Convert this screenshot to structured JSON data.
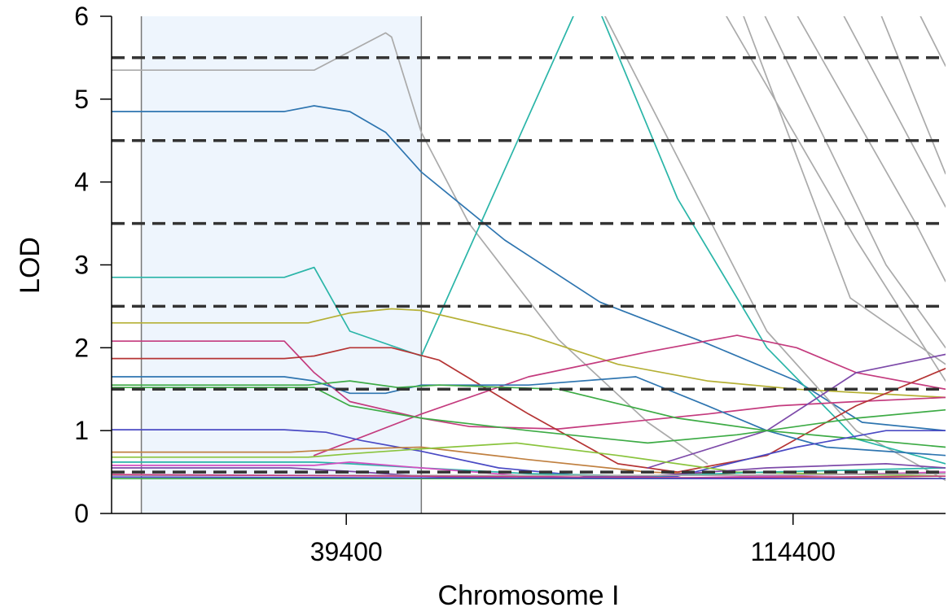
{
  "chart_data": {
    "type": "line",
    "title": "",
    "xlabel": "Chromosome I",
    "ylabel": "LOD",
    "xlim": [
      0,
      140000
    ],
    "ylim": [
      0,
      6
    ],
    "x_ticks": [
      39400,
      114400
    ],
    "y_ticks": [
      0,
      1,
      2,
      3,
      4,
      5,
      6
    ],
    "grid": false,
    "legend": "none",
    "highlight_region": {
      "x": [
        5000,
        52000
      ],
      "color": "#eef5fd",
      "edge_color": "#777777"
    },
    "thresholds": [
      0.5,
      1.5,
      2.5,
      3.5,
      4.5,
      5.5
    ],
    "threshold_color": "#333333",
    "series": [
      {
        "color": "#aaaaaa",
        "x": [
          0,
          34000,
          46000,
          47000,
          52000,
          60000,
          75000,
          90000,
          100000
        ],
        "y": [
          5.35,
          5.35,
          5.8,
          5.75,
          4.6,
          3.5,
          2.1,
          1.1,
          0.6
        ]
      },
      {
        "color": "#2e75b0",
        "x": [
          0,
          29000,
          34000,
          40000,
          46000,
          52000,
          66000,
          82000,
          100000,
          115000,
          126000,
          140000
        ],
        "y": [
          4.85,
          4.85,
          4.92,
          4.85,
          4.6,
          4.12,
          3.3,
          2.55,
          2.05,
          1.6,
          1.1,
          1.0
        ]
      },
      {
        "color": "#aaaaaa",
        "x": [
          80000,
          110000,
          125000,
          140000
        ],
        "y": [
          6.4,
          2.2,
          1.0,
          0.4
        ]
      },
      {
        "color": "#aaaaaa",
        "x": [
          100000,
          125000,
          140000
        ],
        "y": [
          6.4,
          3.3,
          1.6
        ]
      },
      {
        "color": "#aaaaaa",
        "x": [
          107000,
          130000,
          140000
        ],
        "y": [
          6.4,
          3.0,
          2.0
        ]
      },
      {
        "color": "#aaaaaa",
        "x": [
          112000,
          135000,
          140000
        ],
        "y": [
          6.4,
          3.5,
          2.8
        ]
      },
      {
        "color": "#aaaaaa",
        "x": [
          120000,
          140000
        ],
        "y": [
          6.4,
          3.7
        ]
      },
      {
        "color": "#aaaaaa",
        "x": [
          127000,
          140000
        ],
        "y": [
          6.4,
          4.1
        ]
      },
      {
        "color": "#aaaaaa",
        "x": [
          133000,
          140000
        ],
        "y": [
          6.4,
          5.4
        ]
      },
      {
        "color": "#aaaaaa",
        "x": [
          104000,
          124000,
          140000
        ],
        "y": [
          6.4,
          2.6,
          1.8
        ]
      },
      {
        "color": "#2ab5a8",
        "x": [
          0,
          29000,
          34000,
          40000,
          52000,
          80000,
          95000,
          110000,
          125000,
          140000
        ],
        "y": [
          2.85,
          2.85,
          2.97,
          2.2,
          1.9,
          6.4,
          3.8,
          2.0,
          0.9,
          0.6
        ]
      },
      {
        "color": "#b5b035",
        "x": [
          0,
          33000,
          40000,
          47000,
          52000,
          70000,
          85000,
          100000,
          115000,
          140000
        ],
        "y": [
          2.3,
          2.3,
          2.42,
          2.47,
          2.45,
          2.15,
          1.8,
          1.6,
          1.5,
          1.4
        ]
      },
      {
        "color": "#c43b7e",
        "x": [
          0,
          29000,
          34000,
          40000,
          52000,
          60000,
          75000,
          100000,
          112000,
          125000,
          140000
        ],
        "y": [
          2.08,
          2.08,
          1.7,
          1.35,
          1.15,
          1.05,
          1.02,
          1.2,
          1.3,
          1.35,
          1.4
        ]
      },
      {
        "color": "#c43b7e",
        "x": [
          34000,
          52000,
          70000,
          90000,
          105000,
          115000,
          125000,
          140000
        ],
        "y": [
          0.7,
          1.2,
          1.65,
          1.95,
          2.15,
          2.0,
          1.7,
          1.5
        ]
      },
      {
        "color": "#b53434",
        "x": [
          0,
          29000,
          34000,
          40000,
          47000,
          55000,
          70000,
          85000,
          95000,
          110000,
          125000,
          140000
        ],
        "y": [
          1.87,
          1.87,
          1.9,
          2.0,
          2.0,
          1.85,
          1.2,
          0.6,
          0.5,
          0.7,
          1.3,
          1.75
        ]
      },
      {
        "color": "#2e75b0",
        "x": [
          0,
          29000,
          34000,
          40000,
          46000,
          52000,
          70000,
          88000,
          100000,
          110000,
          120000,
          140000
        ],
        "y": [
          1.65,
          1.65,
          1.6,
          1.45,
          1.45,
          1.55,
          1.55,
          1.65,
          1.3,
          1.0,
          0.8,
          0.7
        ]
      },
      {
        "color": "#3dab45",
        "x": [
          0,
          33000,
          40000,
          48000,
          55000,
          75000,
          95000,
          110000,
          125000,
          140000
        ],
        "y": [
          1.55,
          1.55,
          1.6,
          1.52,
          1.55,
          1.5,
          1.15,
          1.0,
          0.9,
          0.8
        ]
      },
      {
        "color": "#7d4aa9",
        "x": [
          90000,
          110000,
          125000,
          140000
        ],
        "y": [
          0.55,
          1.0,
          1.7,
          1.92
        ]
      },
      {
        "color": "#4a4ac4",
        "x": [
          0,
          29000,
          36000,
          42000,
          52000,
          65000,
          80000,
          95000,
          115000,
          130000,
          140000
        ],
        "y": [
          1.01,
          1.01,
          0.98,
          0.88,
          0.75,
          0.55,
          0.45,
          0.45,
          0.8,
          1.0,
          1.0
        ]
      },
      {
        "color": "#3dab45",
        "x": [
          0,
          34000,
          40000,
          52000,
          70000,
          90000,
          105000,
          125000,
          140000
        ],
        "y": [
          1.52,
          1.52,
          1.3,
          1.15,
          1.0,
          0.85,
          0.95,
          1.15,
          1.25
        ]
      },
      {
        "color": "#c08040",
        "x": [
          0,
          30000,
          40000,
          52000,
          70000,
          90000,
          110000,
          140000
        ],
        "y": [
          0.74,
          0.74,
          0.78,
          0.8,
          0.65,
          0.5,
          0.45,
          0.42
        ]
      },
      {
        "color": "#8ac43d",
        "x": [
          0,
          33000,
          40000,
          52000,
          68000,
          85000,
          105000,
          140000
        ],
        "y": [
          0.68,
          0.68,
          0.72,
          0.78,
          0.85,
          0.7,
          0.5,
          0.45
        ]
      },
      {
        "color": "#2ab5a8",
        "x": [
          0,
          34000,
          40000,
          52000,
          70000,
          90000,
          110000,
          140000
        ],
        "y": [
          0.62,
          0.62,
          0.6,
          0.55,
          0.48,
          0.45,
          0.5,
          0.55
        ]
      },
      {
        "color": "#d24fc0",
        "x": [
          0,
          34000,
          40000,
          52000,
          70000,
          90000,
          110000,
          140000
        ],
        "y": [
          0.58,
          0.58,
          0.62,
          0.55,
          0.45,
          0.42,
          0.45,
          0.5
        ]
      },
      {
        "color": "#7d4aa9",
        "x": [
          0,
          30000,
          42000,
          52000,
          70000,
          90000,
          110000,
          130000,
          140000
        ],
        "y": [
          0.55,
          0.55,
          0.5,
          0.45,
          0.42,
          0.45,
          0.55,
          0.6,
          0.55
        ]
      },
      {
        "color": "#3dab45",
        "x": [
          0,
          52000,
          90000,
          140000
        ],
        "y": [
          0.42,
          0.42,
          0.42,
          0.42
        ]
      },
      {
        "color": "#aaaaaa",
        "x": [
          0,
          52000,
          100000,
          140000
        ],
        "y": [
          0.46,
          0.46,
          0.46,
          0.48
        ]
      },
      {
        "color": "#c43b7e",
        "x": [
          0,
          52000,
          100000,
          140000
        ],
        "y": [
          0.47,
          0.45,
          0.43,
          0.45
        ]
      },
      {
        "color": "#4a4ac4",
        "x": [
          0,
          52000,
          100000,
          140000
        ],
        "y": [
          0.44,
          0.43,
          0.42,
          0.42
        ]
      }
    ]
  }
}
